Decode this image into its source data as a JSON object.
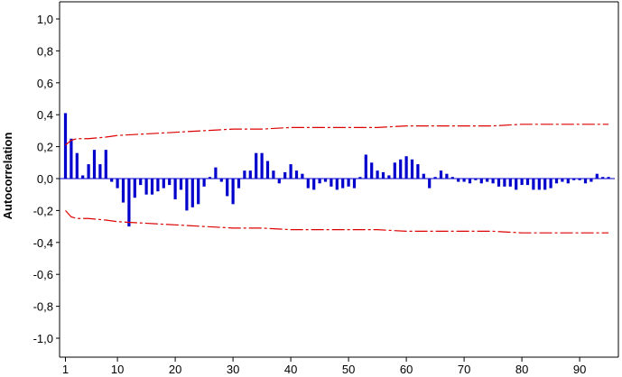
{
  "chart_data": {
    "type": "bar",
    "title": "",
    "xlabel": "",
    "ylabel": "Autocorrelation",
    "xlim": [
      0,
      96
    ],
    "ylim": [
      -1.1,
      1.1
    ],
    "x_ticks": [
      1,
      10,
      20,
      30,
      40,
      50,
      60,
      70,
      80,
      90
    ],
    "y_ticks": [
      -1.0,
      -0.8,
      -0.6,
      -0.4,
      -0.2,
      0.0,
      0.2,
      0.4,
      0.6,
      0.8,
      1.0
    ],
    "y_tick_labels": [
      "-1,0",
      "-0,8",
      "-0,6",
      "-0,4",
      "-0,2",
      "0,0",
      "0,2",
      "0,4",
      "0,6",
      "0,8",
      "1,0"
    ],
    "grid": false,
    "bar_color": "#0000cc",
    "limit_color": "#dd0000",
    "series": [
      {
        "lags": [
          1,
          2,
          3,
          4,
          5,
          6,
          7,
          8,
          9,
          10,
          11,
          12,
          13,
          14,
          15,
          16,
          17,
          18,
          19,
          20,
          21,
          22,
          23,
          24,
          25,
          26,
          27,
          28,
          29,
          30,
          31,
          32,
          33,
          34,
          35,
          36,
          37,
          38,
          39,
          40,
          41,
          42,
          43,
          44,
          45,
          46,
          47,
          48,
          49,
          50,
          51,
          52,
          53,
          54,
          55,
          56,
          57,
          58,
          59,
          60,
          61,
          62,
          63,
          64,
          65,
          66,
          67,
          68,
          69,
          70,
          71,
          72,
          73,
          74,
          75,
          76,
          77,
          78,
          79,
          80,
          81,
          82,
          83,
          84,
          85,
          86,
          87,
          88,
          89,
          90,
          91,
          92,
          93,
          94,
          95
        ],
        "values": [
          0.41,
          0.25,
          0.16,
          0.02,
          0.09,
          0.18,
          0.09,
          0.18,
          -0.02,
          -0.06,
          -0.15,
          -0.3,
          -0.12,
          -0.04,
          -0.1,
          -0.1,
          -0.08,
          -0.06,
          -0.04,
          -0.13,
          -0.07,
          -0.2,
          -0.18,
          -0.16,
          -0.05,
          0.01,
          0.07,
          -0.02,
          -0.11,
          -0.16,
          -0.06,
          0.05,
          0.05,
          0.16,
          0.16,
          0.11,
          0.05,
          -0.03,
          0.04,
          0.09,
          0.05,
          0.03,
          -0.06,
          -0.07,
          -0.03,
          -0.02,
          -0.05,
          -0.07,
          -0.06,
          -0.05,
          -0.06,
          0.01,
          0.15,
          0.1,
          0.05,
          0.04,
          0.02,
          0.1,
          0.12,
          0.14,
          0.12,
          0.09,
          0.03,
          -0.06,
          0.01,
          0.05,
          0.03,
          0.01,
          -0.02,
          -0.02,
          -0.03,
          -0.01,
          -0.03,
          -0.02,
          -0.03,
          -0.05,
          -0.05,
          -0.05,
          -0.07,
          -0.04,
          -0.04,
          -0.07,
          -0.07,
          -0.07,
          -0.06,
          -0.03,
          -0.02,
          -0.03,
          -0.01,
          -0.01,
          -0.03,
          -0.02,
          0.03,
          0.01,
          0.01
        ]
      }
    ],
    "limits": {
      "lags": [
        1,
        2,
        3,
        5,
        8,
        10,
        15,
        20,
        25,
        30,
        35,
        40,
        45,
        50,
        55,
        60,
        65,
        70,
        75,
        80,
        85,
        90,
        95
      ],
      "upper": [
        0.21,
        0.24,
        0.25,
        0.25,
        0.26,
        0.27,
        0.28,
        0.29,
        0.3,
        0.31,
        0.31,
        0.32,
        0.32,
        0.32,
        0.32,
        0.33,
        0.33,
        0.33,
        0.33,
        0.34,
        0.34,
        0.34,
        0.34
      ],
      "lower": [
        -0.2,
        -0.24,
        -0.25,
        -0.25,
        -0.26,
        -0.27,
        -0.28,
        -0.29,
        -0.3,
        -0.31,
        -0.31,
        -0.32,
        -0.32,
        -0.32,
        -0.32,
        -0.33,
        -0.33,
        -0.33,
        -0.33,
        -0.34,
        -0.34,
        -0.34,
        -0.34
      ]
    }
  }
}
